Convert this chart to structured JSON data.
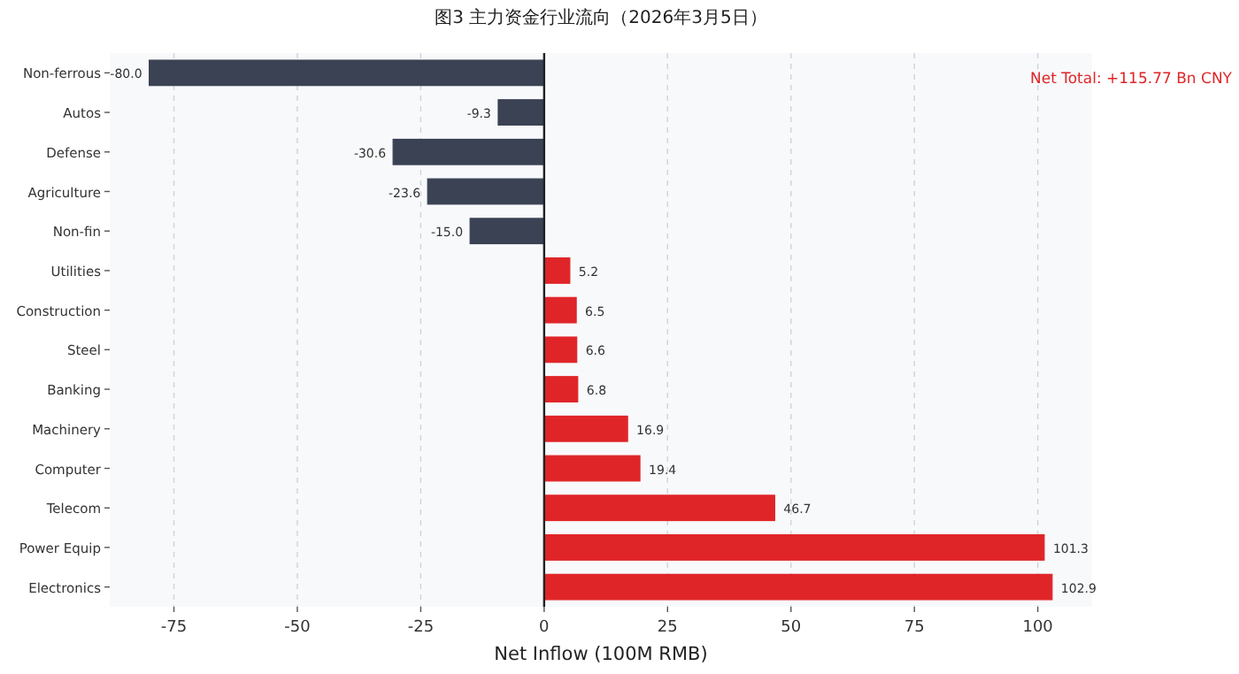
{
  "chart_data": {
    "type": "bar",
    "orientation": "horizontal",
    "title": "图3 主力资金行业流向（2026年3月5日）",
    "xlabel": "Net Inflow (100M RMB)",
    "categories": [
      "Non-ferrous",
      "Autos",
      "Defense",
      "Agriculture",
      "Non-fin",
      "Utilities",
      "Construction",
      "Steel",
      "Banking",
      "Machinery",
      "Computer",
      "Telecom",
      "Power Equip",
      "Electronics"
    ],
    "values": [
      -80.0,
      -9.3,
      -30.6,
      -23.6,
      -15.0,
      5.2,
      6.5,
      6.6,
      6.8,
      16.9,
      19.4,
      46.7,
      101.3,
      102.9
    ],
    "value_labels": [
      "-80.0",
      "-9.3",
      "-30.6",
      "-23.6",
      "-15.0",
      "5.2",
      "6.5",
      "6.6",
      "6.8",
      "16.9",
      "19.4",
      "46.7",
      "101.3",
      "102.9"
    ],
    "colors": [
      "#3a4254",
      "#3a4254",
      "#3a4254",
      "#3a4254",
      "#3a4254",
      "#e02528",
      "#e02528",
      "#e02528",
      "#e02528",
      "#e02528",
      "#e02528",
      "#e02528",
      "#e02528",
      "#e02528"
    ],
    "xlim": [
      -88,
      111
    ],
    "xticks": [
      -75,
      -50,
      -25,
      0,
      25,
      50,
      75,
      100
    ],
    "grid": "x",
    "ref_lines": [
      {
        "axis": "x",
        "value": 0,
        "color": "#222222"
      }
    ],
    "annotations": [
      "Net Total: +115.77 Bn CNY"
    ]
  }
}
